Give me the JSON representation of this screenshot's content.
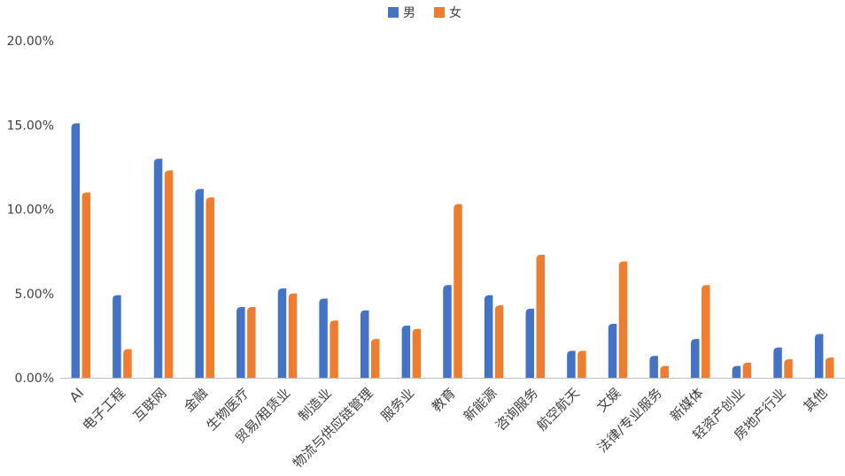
{
  "chart_data": {
    "type": "bar",
    "title": "",
    "xlabel": "",
    "ylabel": "",
    "ylim": [
      0,
      20
    ],
    "y_ticks": [
      "0.00%",
      "5.00%",
      "10.00%",
      "15.00%",
      "20.00%"
    ],
    "legend_position": "top-center",
    "grid": false,
    "categories": [
      "AI",
      "电子工程",
      "互联网",
      "金融",
      "生物医疗",
      "贸易/租赁业",
      "制造业",
      "物流与供应链管理",
      "服务业",
      "教育",
      "新能源",
      "咨询服务",
      "航空航天",
      "文娱",
      "法律/专业服务",
      "新媒体",
      "轻资产创业",
      "房地产行业",
      "其他"
    ],
    "series": [
      {
        "name": "男",
        "color": "#4472C4",
        "values": [
          15.1,
          4.9,
          13.0,
          11.2,
          4.2,
          5.3,
          4.7,
          4.0,
          3.1,
          5.5,
          4.9,
          4.1,
          1.6,
          3.2,
          1.3,
          2.3,
          0.7,
          1.8,
          2.6
        ]
      },
      {
        "name": "女",
        "color": "#ED7D31",
        "values": [
          11.0,
          1.7,
          12.3,
          10.7,
          4.2,
          5.0,
          3.4,
          2.3,
          2.9,
          10.3,
          4.3,
          7.3,
          1.6,
          6.9,
          0.7,
          5.5,
          0.9,
          1.1,
          1.2
        ]
      }
    ]
  }
}
